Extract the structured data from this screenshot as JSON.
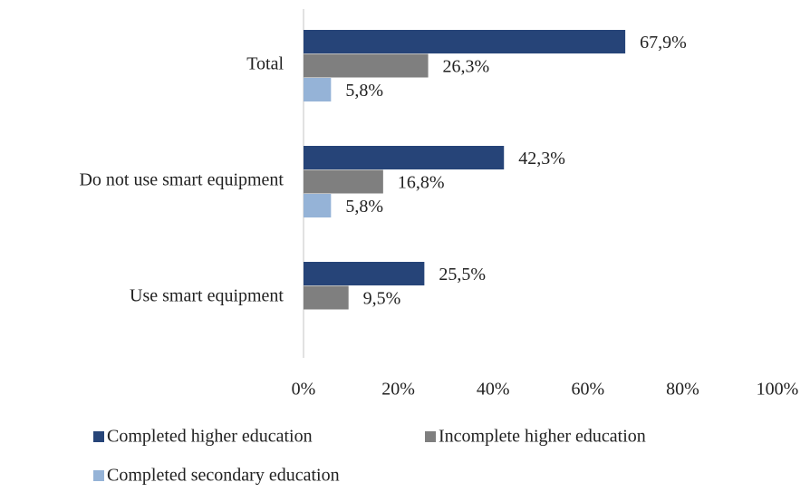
{
  "chart_data": {
    "type": "hbar",
    "categories": [
      "Total",
      "Do not use smart equipment",
      "Use smart equipment"
    ],
    "series": [
      {
        "name": "Completed higher education",
        "color": "#264478",
        "values": [
          67.9,
          42.3,
          25.5
        ],
        "value_labels": [
          "67,9%",
          "42,3%",
          "25,5%"
        ]
      },
      {
        "name": "Incomplete higher education",
        "color": "#7f7f7f",
        "values": [
          26.3,
          16.8,
          9.5
        ],
        "value_labels": [
          "26,3%",
          "16,8%",
          "9,5%"
        ]
      },
      {
        "name": "Completed secondary education",
        "color": "#95b3d7",
        "values": [
          5.8,
          5.8,
          null
        ],
        "value_labels": [
          "5,8%",
          "5,8%",
          null
        ]
      }
    ],
    "xlim": [
      0,
      100
    ],
    "xticks": [
      {
        "value": 0,
        "label": "0%"
      },
      {
        "value": 20,
        "label": "20%"
      },
      {
        "value": 40,
        "label": "40%"
      },
      {
        "value": 60,
        "label": "60%"
      },
      {
        "value": 80,
        "label": "80%"
      },
      {
        "value": 100,
        "label": "100%"
      }
    ],
    "legend": "bottom"
  }
}
